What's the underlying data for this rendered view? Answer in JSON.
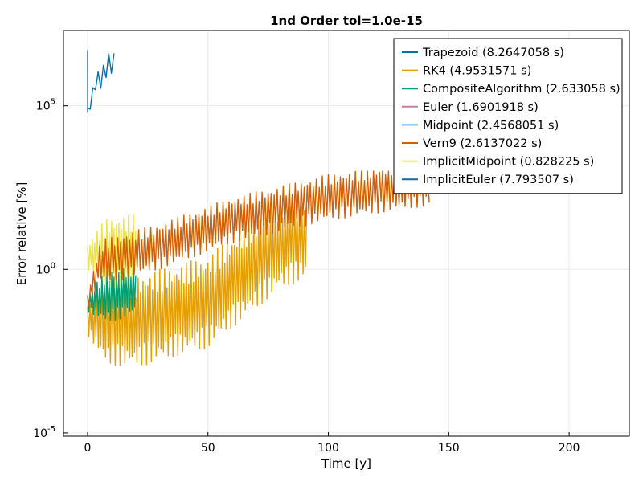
{
  "chart_data": {
    "type": "line",
    "title": "1nd Order tol=1.0e-15",
    "xlabel": "Time [y]",
    "ylabel": "Error relative [%]",
    "xlim": [
      -10,
      225
    ],
    "ylim_log10": [
      -5.1,
      7.3
    ],
    "yscale": "log",
    "grid": true,
    "legend_position": "top-right",
    "x_ticks": [
      {
        "value": 0,
        "label": "0"
      },
      {
        "value": 50,
        "label": "50"
      },
      {
        "value": 100,
        "label": "100"
      },
      {
        "value": 150,
        "label": "150"
      },
      {
        "value": 200,
        "label": "200"
      }
    ],
    "y_ticks": [
      {
        "log10": -5,
        "base": "10",
        "exp": "-5"
      },
      {
        "log10": 0,
        "base": "10",
        "exp": "0"
      },
      {
        "log10": 5,
        "base": "10",
        "exp": "5"
      }
    ],
    "series": [
      {
        "name": "Trapezoid (8.2647058 s)",
        "color": "#0072b2",
        "x_end": 11,
        "log_min": 3.8,
        "log_max": 6.6,
        "trend": [
          [
            0,
            4.8
          ],
          [
            3,
            5.6
          ],
          [
            11,
            6.5
          ]
        ],
        "osc": 0.45,
        "period": 2.2,
        "first": 6.7
      },
      {
        "name": "RK4 (4.9531571 s)",
        "color": "#e69f00",
        "x_end": 91,
        "log_min": -5,
        "log_max": 1.9,
        "trend": [
          [
            0,
            -1.5
          ],
          [
            20,
            -1.6
          ],
          [
            50,
            -1.0
          ],
          [
            80,
            0.8
          ],
          [
            91,
            1.1
          ]
        ],
        "osc": 1.4,
        "period": 1.0
      },
      {
        "name": "CompositeAlgorithm (2.633058 s)",
        "color": "#009e73",
        "x_end": 20,
        "log_min": -2.5,
        "log_max": 0.6,
        "trend": [
          [
            0,
            -1.0
          ],
          [
            20,
            -0.6
          ]
        ],
        "osc": 0.8,
        "period": 1.0
      },
      {
        "name": "Euler (1.6901918 s)",
        "color": "#cc79a7",
        "x_end": 0,
        "log_min": 0,
        "log_max": 0,
        "trend": [],
        "osc": 0,
        "period": 1
      },
      {
        "name": "Midpoint (2.4568051 s)",
        "color": "#56b4e9",
        "x_end": 0,
        "log_min": 0,
        "log_max": 0,
        "trend": [],
        "osc": 0,
        "period": 1
      },
      {
        "name": "Vern9 (2.6137022 s)",
        "color": "#d55e00",
        "x_end": 142,
        "log_min": -4.6,
        "log_max": 3.0,
        "trend": [
          [
            0,
            -1.0
          ],
          [
            5,
            0.2
          ],
          [
            30,
            0.7
          ],
          [
            60,
            1.5
          ],
          [
            100,
            2.2
          ],
          [
            142,
            2.65
          ]
        ],
        "osc": 0.7,
        "period": 1.25
      },
      {
        "name": "ImplicitMidpoint (0.828225 s)",
        "color": "#f0e442",
        "x_end": 20,
        "log_min": -2.0,
        "log_max": 1.9,
        "trend": [
          [
            0,
            0.4
          ],
          [
            20,
            0.6
          ]
        ],
        "osc": 1.1,
        "period": 1.0
      },
      {
        "name": "ImplicitEuler (7.793507 s)",
        "color": "#0072b2",
        "x_end": 0,
        "log_min": 0,
        "log_max": 0,
        "trend": [],
        "osc": 0,
        "period": 1
      }
    ]
  }
}
